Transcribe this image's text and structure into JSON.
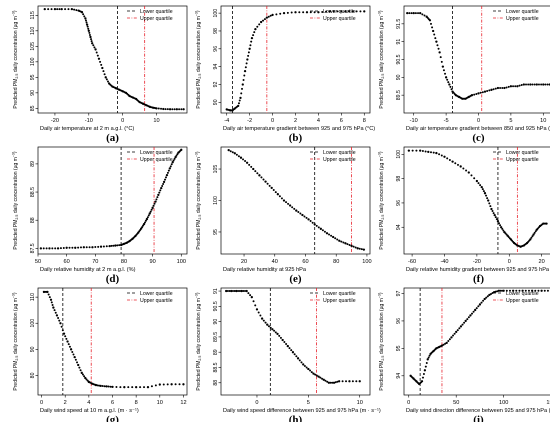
{
  "ylabel_prefix": "Predicted PM",
  "ylabel_sub": "2.5",
  "ylabel_suffix": " daily concentration (µg m",
  "ylabel_sup": "−3",
  "ylabel_end": ")",
  "legend": {
    "lower": "Lower quartile",
    "upper": "Upper quartile"
  },
  "colors": {
    "points": "#000000",
    "lower_line": "#000000",
    "upper_line": "#e8202a"
  },
  "chart_data": [
    {
      "type": "scatter",
      "letter": "(a)",
      "xlabel": "Daily air temperature at 2 m a.g.l. (°C)",
      "xlim": [
        -25,
        19
      ],
      "ylim": [
        83.5,
        118
      ],
      "xticks": [
        -20,
        -10,
        0,
        10
      ],
      "yticks": [
        85,
        90,
        95,
        100,
        105,
        110,
        115
      ],
      "lower_quartile": -1.5,
      "upper_quartile": 6.5,
      "x": [
        -23,
        -20,
        -18,
        -15,
        -13,
        -12,
        -11,
        -10.5,
        -10,
        -9.5,
        -9,
        -8,
        -7,
        -6,
        -5,
        -4,
        -3,
        -2,
        -1,
        0,
        1,
        2,
        3,
        4,
        5,
        6,
        7,
        8,
        9,
        10,
        12,
        14,
        16,
        18
      ],
      "y": [
        117,
        117,
        117,
        117,
        116.5,
        116,
        114,
        112,
        110,
        108,
        106,
        104,
        101,
        98,
        95,
        93,
        92,
        91.5,
        91,
        90.5,
        90,
        89,
        88.5,
        88,
        87,
        86.5,
        86,
        85.5,
        85.2,
        85,
        84.8,
        84.7,
        84.7,
        84.7
      ]
    },
    {
      "type": "scatter",
      "letter": "(b)",
      "xlabel": "Daily air temperature gradient between 925 and 975 hPa (°C)",
      "xlim": [
        -4.5,
        8.5
      ],
      "ylim": [
        88.8,
        100.8
      ],
      "xticks": [
        -4,
        -2,
        0,
        2,
        4,
        6,
        8
      ],
      "yticks": [
        90,
        92,
        94,
        96,
        98,
        100
      ],
      "lower_quartile": -3.5,
      "upper_quartile": -0.5,
      "x": [
        -4,
        -3.7,
        -3.5,
        -3.3,
        -3,
        -2.8,
        -2.6,
        -2.4,
        -2.2,
        -2,
        -1.8,
        -1.5,
        -1,
        -0.5,
        0,
        1,
        2,
        3,
        4,
        5,
        6,
        7,
        8
      ],
      "y": [
        89.2,
        89.1,
        89.1,
        89.3,
        89.6,
        90.5,
        92,
        93.5,
        94.8,
        96,
        97.2,
        98.2,
        99,
        99.5,
        99.8,
        100,
        100.1,
        100.1,
        100.1,
        100.2,
        100.2,
        100.2,
        100.2
      ]
    },
    {
      "type": "scatter",
      "letter": "(c)",
      "xlabel": "Daily air temperature gradient between 850 and 925 hPa (°C)",
      "xlim": [
        -11.5,
        11.5
      ],
      "ylim": [
        89,
        92
      ],
      "xticks": [
        -10,
        -5,
        0,
        5,
        10
      ],
      "yticks": [
        89.5,
        90,
        90.5,
        91,
        91.5
      ],
      "lower_quartile": -4,
      "upper_quartile": 0.5,
      "x": [
        -11,
        -10,
        -9,
        -8,
        -7.5,
        -7,
        -6.5,
        -6,
        -5.5,
        -5,
        -4.5,
        -4,
        -3.5,
        -3,
        -2.5,
        -2,
        -1.5,
        -1,
        0,
        1,
        2,
        3,
        4,
        5,
        6,
        7,
        8,
        9,
        10,
        11
      ],
      "y": [
        91.8,
        91.8,
        91.8,
        91.7,
        91.6,
        91.3,
        91,
        90.7,
        90.3,
        90,
        89.8,
        89.6,
        89.5,
        89.45,
        89.4,
        89.4,
        89.45,
        89.5,
        89.55,
        89.6,
        89.65,
        89.7,
        89.7,
        89.75,
        89.75,
        89.8,
        89.8,
        89.8,
        89.8,
        89.8
      ]
    },
    {
      "type": "scatter",
      "letter": "(d)",
      "xlabel": "Daily relative humidity at 2 m a.g.l. (%)",
      "xlim": [
        50,
        102
      ],
      "ylim": [
        87.4,
        89.3
      ],
      "xticks": [
        50,
        60,
        70,
        80,
        90,
        100
      ],
      "yticks": [
        87.5,
        88,
        88.5,
        89
      ],
      "lower_quartile": 79,
      "upper_quartile": 90.5,
      "x": [
        51,
        54,
        57,
        60,
        63,
        66,
        69,
        72,
        75,
        77,
        79,
        80,
        81,
        82,
        83,
        84,
        85,
        86,
        87,
        88,
        89,
        90,
        91,
        92,
        93,
        94,
        95,
        96,
        97,
        98,
        99,
        100
      ],
      "y": [
        87.5,
        87.5,
        87.5,
        87.51,
        87.51,
        87.52,
        87.52,
        87.53,
        87.54,
        87.55,
        87.56,
        87.58,
        87.6,
        87.63,
        87.67,
        87.72,
        87.78,
        87.85,
        87.93,
        88.02,
        88.12,
        88.22,
        88.33,
        88.45,
        88.57,
        88.68,
        88.8,
        88.92,
        89.03,
        89.12,
        89.2,
        89.25
      ]
    },
    {
      "type": "scatter",
      "letter": "(e)",
      "xlabel": "Daily relative humidity at 925 hPa",
      "xlim": [
        5,
        102
      ],
      "ylim": [
        91.5,
        108.5
      ],
      "xticks": [
        20,
        40,
        60,
        80,
        100
      ],
      "yticks": [
        95,
        100,
        105
      ],
      "lower_quartile": 66,
      "upper_quartile": 90,
      "x": [
        10,
        14,
        18,
        22,
        26,
        30,
        34,
        38,
        42,
        46,
        50,
        54,
        58,
        62,
        66,
        70,
        74,
        78,
        82,
        86,
        90,
        94,
        98
      ],
      "y": [
        108,
        107.5,
        106.8,
        106,
        105,
        104,
        103,
        102,
        101,
        100,
        99.2,
        98.4,
        97.7,
        97,
        96.2,
        95.5,
        94.8,
        94.2,
        93.6,
        93.2,
        92.8,
        92.4,
        92.2
      ]
    },
    {
      "type": "scatter",
      "letter": "(f)",
      "xlabel": "Daily relative humidity gradient between 925 and 975 hPa (%)",
      "xlim": [
        -65,
        27
      ],
      "ylim": [
        91.8,
        100.6
      ],
      "xticks": [
        -60,
        -40,
        -20,
        0,
        20
      ],
      "yticks": [
        94,
        96,
        98,
        100
      ],
      "lower_quartile": -7,
      "upper_quartile": 5,
      "x": [
        -62,
        -55,
        -50,
        -45,
        -40,
        -35,
        -30,
        -25,
        -20,
        -17,
        -15,
        -13,
        -11,
        -9,
        -7,
        -5,
        -3,
        -1,
        1,
        3,
        5,
        7,
        9,
        11,
        13,
        15,
        17,
        19,
        21,
        23
      ],
      "y": [
        100.3,
        100.3,
        100.2,
        100.1,
        99.8,
        99.4,
        99,
        98.5,
        97.8,
        97.3,
        96.8,
        96.2,
        95.5,
        95,
        94.5,
        94,
        93.6,
        93.3,
        93,
        92.7,
        92.5,
        92.4,
        92.5,
        92.7,
        93,
        93.4,
        93.8,
        94.1,
        94.3,
        94.3
      ]
    },
    {
      "type": "scatter",
      "letter": "(g)",
      "xlabel": "Daily wind speed at 10 m a.g.l. (m · s⁻¹)",
      "xlim": [
        -0.3,
        12.3
      ],
      "ylim": [
        72.5,
        113.5
      ],
      "xticks": [
        0,
        2,
        4,
        6,
        8,
        10,
        12
      ],
      "yticks": [
        80,
        90,
        100,
        110
      ],
      "lower_quartile": 1.8,
      "upper_quartile": 4.2,
      "x": [
        0.2,
        0.5,
        0.8,
        1,
        1.3,
        1.6,
        1.9,
        2.2,
        2.5,
        2.8,
        3.1,
        3.4,
        3.7,
        4,
        4.3,
        4.6,
        5,
        5.5,
        6,
        7,
        8,
        9,
        10,
        11,
        12
      ],
      "y": [
        112,
        112,
        109,
        106,
        103,
        100,
        96,
        93,
        90,
        87,
        84,
        81,
        79,
        77.5,
        76.8,
        76.3,
        76,
        75.8,
        75.6,
        75.5,
        75.5,
        75.5,
        76.5,
        76.6,
        76.6
      ]
    },
    {
      "type": "scatter",
      "letter": "(h)",
      "xlabel": "Daily wind speed difference between 925 and 975 hPa (m · s⁻¹)",
      "xlim": [
        -3.5,
        11
      ],
      "ylim": [
        87.6,
        91.1
      ],
      "xticks": [
        0,
        5,
        10
      ],
      "yticks": [
        88,
        88.5,
        89,
        89.5,
        90,
        90.5,
        91
      ],
      "lower_quartile": 1.3,
      "upper_quartile": 5.8,
      "x": [
        -3,
        -2.5,
        -2,
        -1.5,
        -1,
        -0.5,
        0,
        0.5,
        1,
        1.5,
        2,
        2.5,
        3,
        3.5,
        4,
        4.5,
        5,
        5.5,
        6,
        6.5,
        7,
        7.5,
        8,
        9,
        10
      ],
      "y": [
        91,
        91,
        91,
        91,
        91,
        90.8,
        90.4,
        90.1,
        89.9,
        89.75,
        89.6,
        89.4,
        89.2,
        89,
        88.8,
        88.6,
        88.45,
        88.3,
        88.2,
        88.1,
        88,
        88,
        88.05,
        88.05,
        88.05
      ]
    },
    {
      "type": "scatter",
      "letter": "(i)",
      "xlabel": "Daily wind direction difference between 925 and 975 hPa (m · s⁻¹)",
      "xlim": [
        -5,
        152
      ],
      "ylim": [
        93.3,
        97.2
      ],
      "xticks": [
        0,
        50,
        100,
        150
      ],
      "yticks": [
        94,
        95,
        96,
        97
      ],
      "lower_quartile": 12,
      "upper_quartile": 35,
      "x": [
        2,
        5,
        8,
        11,
        14,
        17,
        20,
        23,
        26,
        29,
        32,
        35,
        40,
        45,
        50,
        55,
        60,
        65,
        70,
        75,
        80,
        85,
        90,
        95,
        100,
        110,
        120,
        130,
        140,
        150
      ],
      "y": [
        94,
        93.9,
        93.8,
        93.7,
        93.8,
        94.2,
        94.6,
        94.8,
        94.9,
        95,
        95.05,
        95.1,
        95.2,
        95.4,
        95.6,
        95.8,
        96,
        96.2,
        96.4,
        96.6,
        96.8,
        96.95,
        97.05,
        97.1,
        97.1,
        97.1,
        97.1,
        97.1,
        97.1,
        97.1
      ]
    }
  ]
}
